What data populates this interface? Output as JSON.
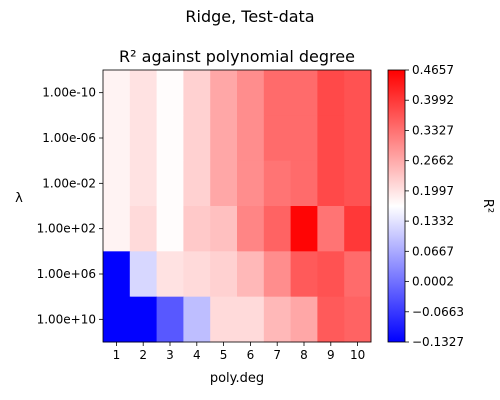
{
  "chart_data": {
    "type": "heatmap",
    "suptitle": "Ridge, Test-data",
    "title": "R² against polynomial degree",
    "xlabel": "poly.deg",
    "ylabel": "λ",
    "colorbar_label": "R²",
    "x_categories": [
      "1",
      "2",
      "3",
      "4",
      "5",
      "6",
      "7",
      "8",
      "9",
      "10"
    ],
    "y_categories": [
      "1.00e-10",
      "1.00e-06",
      "1.00e-02",
      "1.00e+02",
      "1.00e+06",
      "1.00e+10"
    ],
    "colormap": "bwr",
    "colormap_colors": [
      "#0000ff",
      "#ffffff",
      "#ff0000"
    ],
    "value_range": [
      -0.1327,
      0.4657
    ],
    "colorbar_ticks": [
      "0.4657",
      "0.3992",
      "0.3327",
      "0.2662",
      "0.1997",
      "0.1332",
      "0.0667",
      "0.0002",
      "−0.0663",
      "−0.1327"
    ],
    "values": [
      [
        0.18,
        0.2,
        0.17,
        0.22,
        0.27,
        0.3,
        0.34,
        0.34,
        0.38,
        0.37
      ],
      [
        0.18,
        0.2,
        0.17,
        0.22,
        0.27,
        0.3,
        0.34,
        0.34,
        0.38,
        0.37
      ],
      [
        0.18,
        0.2,
        0.17,
        0.22,
        0.27,
        0.3,
        0.33,
        0.34,
        0.38,
        0.37
      ],
      [
        0.18,
        0.21,
        0.17,
        0.23,
        0.24,
        0.31,
        0.35,
        0.46,
        0.33,
        0.4
      ],
      [
        -0.13,
        0.12,
        0.2,
        0.21,
        0.22,
        0.25,
        0.3,
        0.36,
        0.37,
        0.34
      ],
      [
        -0.13,
        -0.13,
        -0.03,
        0.09,
        0.21,
        0.21,
        0.25,
        0.27,
        0.36,
        0.35
      ]
    ]
  }
}
